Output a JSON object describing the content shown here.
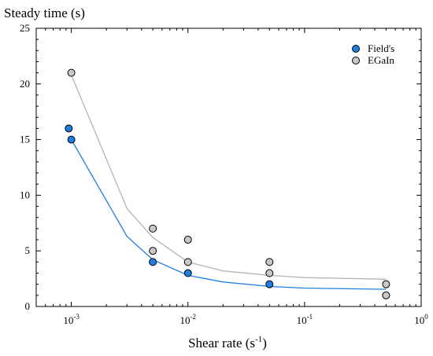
{
  "chart_data": {
    "type": "scatter",
    "xscale": "log",
    "xlim": [
      0.0005,
      1
    ],
    "ylim": [
      0,
      25
    ],
    "xlabel_main": "Shear rate (s",
    "xlabel_sup": "-1",
    "xlabel_close": ")",
    "ylabel": "Steady time (s)",
    "x_ticks": [
      {
        "base": "10",
        "exp": "-3",
        "value": 0.001
      },
      {
        "base": "10",
        "exp": "-2",
        "value": 0.01
      },
      {
        "base": "10",
        "exp": "-1",
        "value": 0.1
      },
      {
        "base": "10",
        "exp": "0",
        "value": 1
      }
    ],
    "y_ticks": [
      {
        "label": "0",
        "value": 0
      },
      {
        "label": "5",
        "value": 5
      },
      {
        "label": "10",
        "value": 10
      },
      {
        "label": "15",
        "value": 15
      },
      {
        "label": "20",
        "value": 20
      },
      {
        "label": "25",
        "value": 25
      }
    ],
    "grid": false,
    "legend_position": "top-right",
    "series": [
      {
        "name": "Field's",
        "color": "#1e7fe0",
        "line_color": "#1e7fe0",
        "points": [
          {
            "x": 0.00095,
            "y": 16
          },
          {
            "x": 0.001,
            "y": 15
          },
          {
            "x": 0.005,
            "y": 4
          },
          {
            "x": 0.01,
            "y": 3
          },
          {
            "x": 0.05,
            "y": 2
          }
        ],
        "fit": [
          {
            "x": 0.001,
            "y": 15
          },
          {
            "x": 0.003,
            "y": 6.3
          },
          {
            "x": 0.005,
            "y": 4.2
          },
          {
            "x": 0.01,
            "y": 2.8
          },
          {
            "x": 0.02,
            "y": 2.2
          },
          {
            "x": 0.05,
            "y": 1.8
          },
          {
            "x": 0.1,
            "y": 1.65
          },
          {
            "x": 0.5,
            "y": 1.55
          }
        ]
      },
      {
        "name": "EGaIn",
        "color": "#c8c8c8",
        "line_color": "#b4b4b4",
        "points": [
          {
            "x": 0.001,
            "y": 21
          },
          {
            "x": 0.005,
            "y": 7
          },
          {
            "x": 0.005,
            "y": 5
          },
          {
            "x": 0.01,
            "y": 6
          },
          {
            "x": 0.01,
            "y": 4
          },
          {
            "x": 0.05,
            "y": 4
          },
          {
            "x": 0.05,
            "y": 3
          },
          {
            "x": 0.5,
            "y": 2
          },
          {
            "x": 0.5,
            "y": 1
          }
        ],
        "fit": [
          {
            "x": 0.001,
            "y": 20.8
          },
          {
            "x": 0.003,
            "y": 8.8
          },
          {
            "x": 0.005,
            "y": 6.2
          },
          {
            "x": 0.01,
            "y": 4.0
          },
          {
            "x": 0.02,
            "y": 3.2
          },
          {
            "x": 0.05,
            "y": 2.8
          },
          {
            "x": 0.1,
            "y": 2.6
          },
          {
            "x": 0.5,
            "y": 2.45
          }
        ]
      }
    ]
  }
}
